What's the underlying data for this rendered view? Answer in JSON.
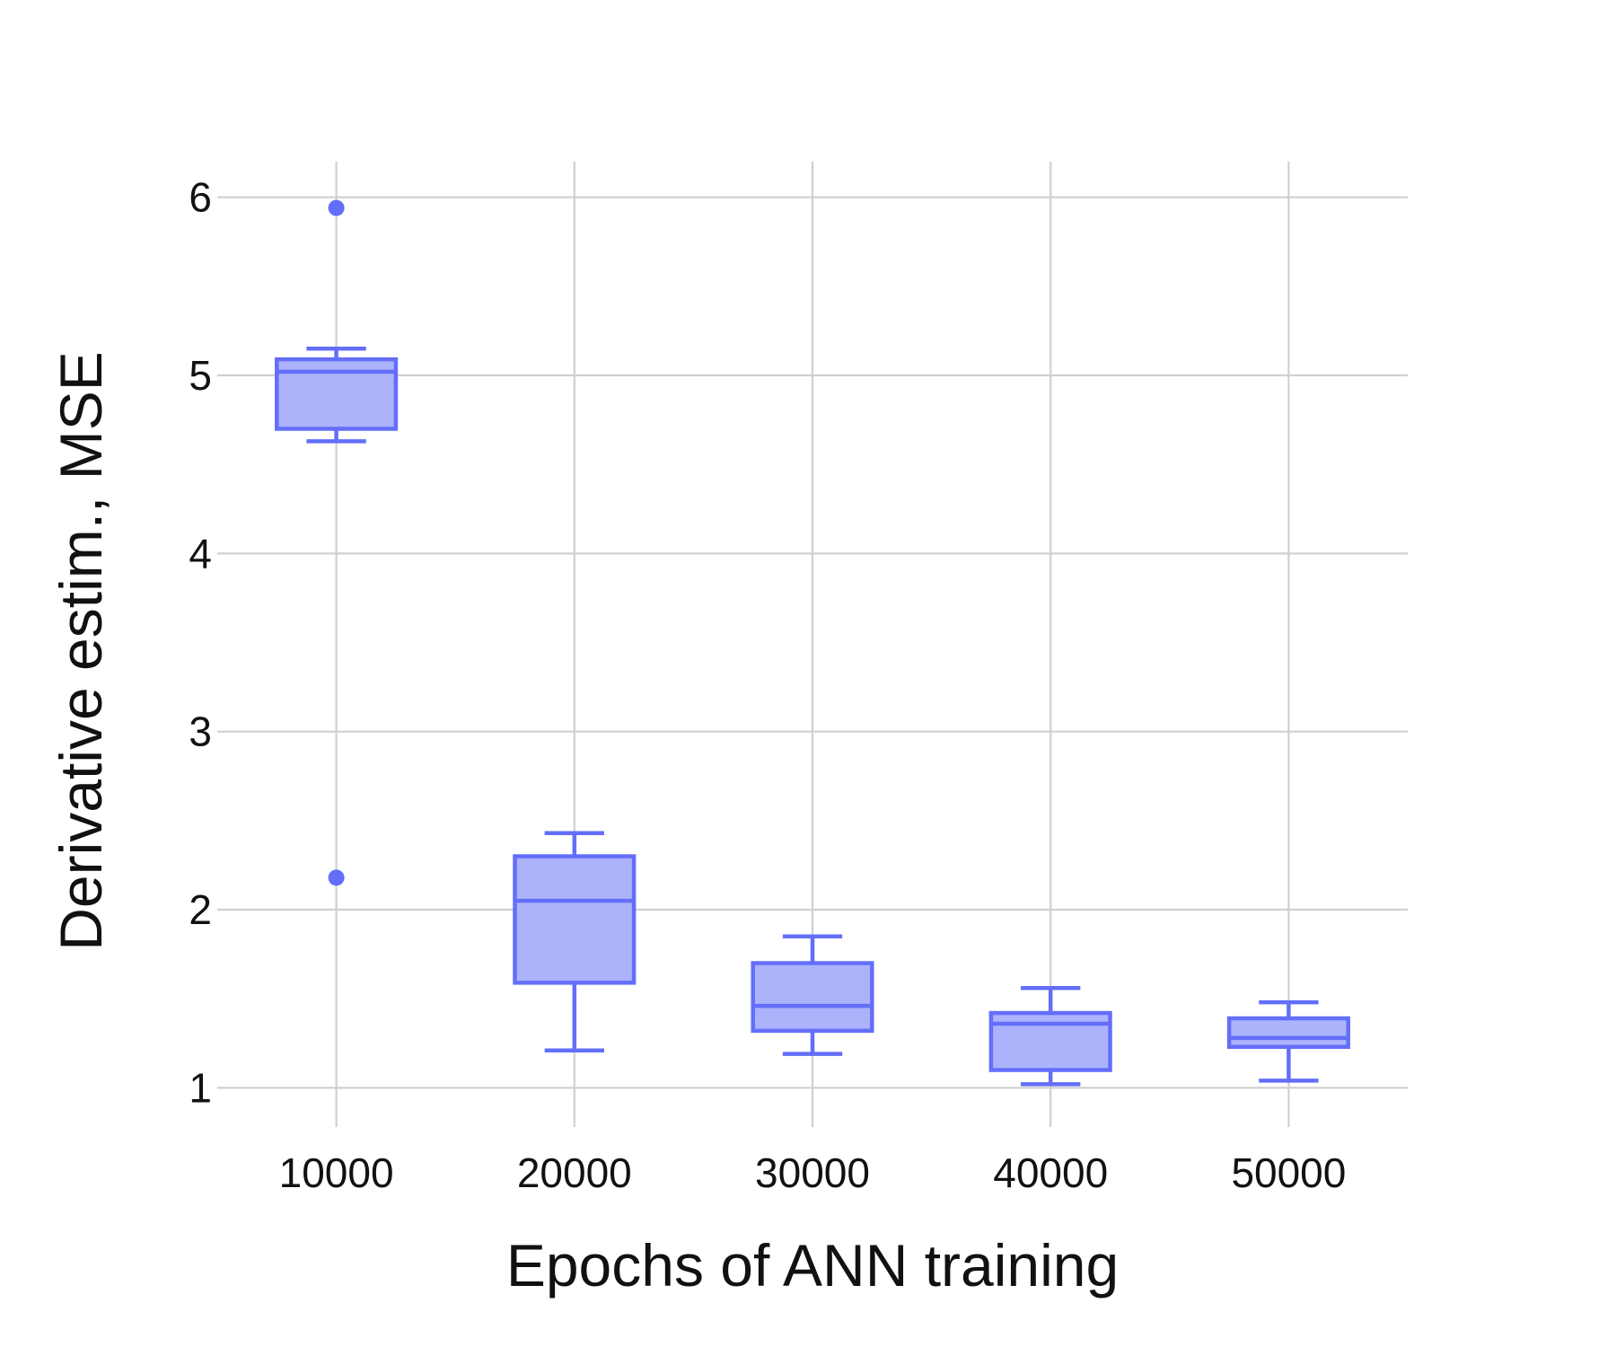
{
  "chart_data": {
    "type": "box",
    "xlabel": "Epochs of ANN training",
    "ylabel": "Derivative estim., MSE",
    "categories": [
      "10000",
      "20000",
      "30000",
      "40000",
      "50000"
    ],
    "yticks": [
      "1",
      "2",
      "3",
      "4",
      "5",
      "6"
    ],
    "ylim": [
      0.78,
      6.2
    ],
    "grid": true,
    "boxes": [
      {
        "category": "10000",
        "lower_whisker": 4.63,
        "q1": 4.7,
        "median": 5.02,
        "q3": 5.09,
        "upper_whisker": 5.15,
        "outliers": [
          5.94,
          2.18
        ]
      },
      {
        "category": "20000",
        "lower_whisker": 1.21,
        "q1": 1.59,
        "median": 2.05,
        "q3": 2.3,
        "upper_whisker": 2.43,
        "outliers": []
      },
      {
        "category": "30000",
        "lower_whisker": 1.19,
        "q1": 1.32,
        "median": 1.46,
        "q3": 1.7,
        "upper_whisker": 1.85,
        "outliers": []
      },
      {
        "category": "40000",
        "lower_whisker": 1.02,
        "q1": 1.1,
        "median": 1.36,
        "q3": 1.42,
        "upper_whisker": 1.56,
        "outliers": []
      },
      {
        "category": "50000",
        "lower_whisker": 1.04,
        "q1": 1.23,
        "median": 1.28,
        "q3": 1.39,
        "upper_whisker": 1.48,
        "outliers": []
      }
    ],
    "colors": {
      "line": "#636efa",
      "fill": "#adb3fb",
      "grid": "#d0d0d0"
    }
  }
}
